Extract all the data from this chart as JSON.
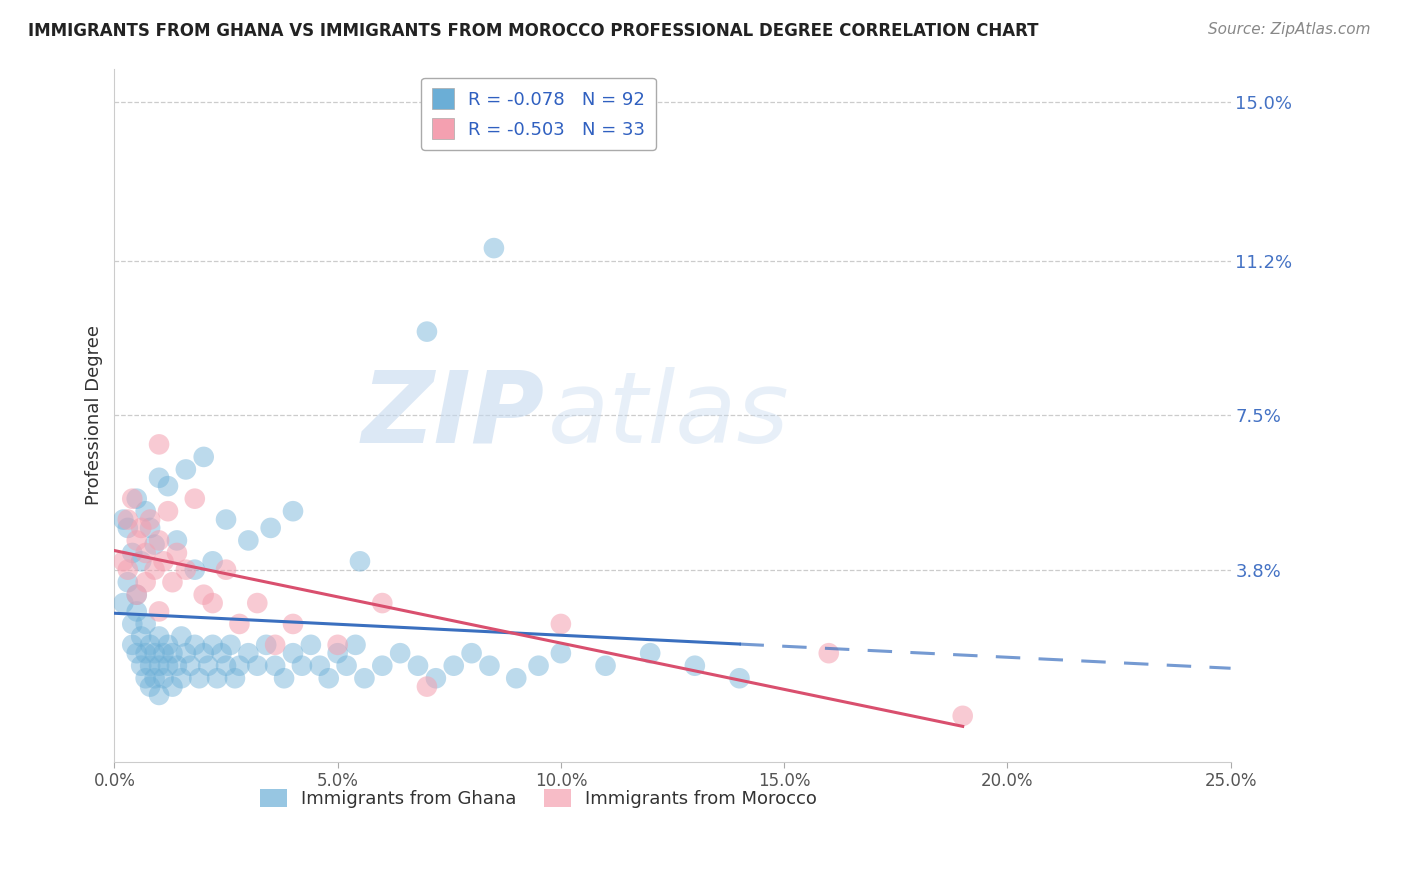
{
  "title": "IMMIGRANTS FROM GHANA VS IMMIGRANTS FROM MOROCCO PROFESSIONAL DEGREE CORRELATION CHART",
  "source": "Source: ZipAtlas.com",
  "ylabel": "Professional Degree",
  "xlim": [
    0.0,
    0.25
  ],
  "ylim": [
    -0.008,
    0.158
  ],
  "yticks": [
    0.038,
    0.075,
    0.112,
    0.15
  ],
  "ytick_labels": [
    "3.8%",
    "7.5%",
    "11.2%",
    "15.0%"
  ],
  "xticks": [
    0.0,
    0.05,
    0.1,
    0.15,
    0.2,
    0.25
  ],
  "xtick_labels": [
    "0.0%",
    "5.0%",
    "10.0%",
    "15.0%",
    "20.0%",
    "25.0%"
  ],
  "ghana_R": -0.078,
  "ghana_N": 92,
  "morocco_R": -0.503,
  "morocco_N": 33,
  "ghana_color": "#6baed6",
  "morocco_color": "#f4a0b0",
  "ghana_line_color": "#3a6fbf",
  "morocco_line_color": "#d94f6e",
  "watermark_zip": "ZIP",
  "watermark_atlas": "atlas",
  "ghana_x": [
    0.002,
    0.003,
    0.004,
    0.004,
    0.005,
    0.005,
    0.005,
    0.006,
    0.006,
    0.007,
    0.007,
    0.007,
    0.008,
    0.008,
    0.008,
    0.009,
    0.009,
    0.01,
    0.01,
    0.01,
    0.011,
    0.011,
    0.012,
    0.012,
    0.013,
    0.013,
    0.014,
    0.015,
    0.015,
    0.016,
    0.017,
    0.018,
    0.019,
    0.02,
    0.021,
    0.022,
    0.023,
    0.024,
    0.025,
    0.026,
    0.027,
    0.028,
    0.03,
    0.032,
    0.034,
    0.036,
    0.038,
    0.04,
    0.042,
    0.044,
    0.046,
    0.048,
    0.05,
    0.052,
    0.054,
    0.056,
    0.06,
    0.064,
    0.068,
    0.072,
    0.076,
    0.08,
    0.084,
    0.09,
    0.095,
    0.1,
    0.11,
    0.12,
    0.13,
    0.14,
    0.002,
    0.003,
    0.004,
    0.005,
    0.006,
    0.007,
    0.008,
    0.009,
    0.01,
    0.012,
    0.014,
    0.016,
    0.018,
    0.02,
    0.022,
    0.025,
    0.03,
    0.035,
    0.04,
    0.055,
    0.07,
    0.085
  ],
  "ghana_y": [
    0.03,
    0.035,
    0.025,
    0.02,
    0.028,
    0.032,
    0.018,
    0.022,
    0.015,
    0.025,
    0.018,
    0.012,
    0.02,
    0.015,
    0.01,
    0.018,
    0.012,
    0.022,
    0.015,
    0.008,
    0.018,
    0.012,
    0.02,
    0.015,
    0.018,
    0.01,
    0.015,
    0.022,
    0.012,
    0.018,
    0.015,
    0.02,
    0.012,
    0.018,
    0.015,
    0.02,
    0.012,
    0.018,
    0.015,
    0.02,
    0.012,
    0.015,
    0.018,
    0.015,
    0.02,
    0.015,
    0.012,
    0.018,
    0.015,
    0.02,
    0.015,
    0.012,
    0.018,
    0.015,
    0.02,
    0.012,
    0.015,
    0.018,
    0.015,
    0.012,
    0.015,
    0.018,
    0.015,
    0.012,
    0.015,
    0.018,
    0.015,
    0.018,
    0.015,
    0.012,
    0.05,
    0.048,
    0.042,
    0.055,
    0.04,
    0.052,
    0.048,
    0.044,
    0.06,
    0.058,
    0.045,
    0.062,
    0.038,
    0.065,
    0.04,
    0.05,
    0.045,
    0.048,
    0.052,
    0.04,
    0.095,
    0.115
  ],
  "morocco_x": [
    0.002,
    0.003,
    0.003,
    0.004,
    0.005,
    0.005,
    0.006,
    0.007,
    0.007,
    0.008,
    0.009,
    0.01,
    0.01,
    0.011,
    0.012,
    0.013,
    0.014,
    0.016,
    0.018,
    0.02,
    0.022,
    0.025,
    0.028,
    0.032,
    0.036,
    0.04,
    0.05,
    0.06,
    0.07,
    0.1,
    0.16,
    0.19,
    0.01
  ],
  "morocco_y": [
    0.04,
    0.05,
    0.038,
    0.055,
    0.045,
    0.032,
    0.048,
    0.042,
    0.035,
    0.05,
    0.038,
    0.045,
    0.028,
    0.04,
    0.052,
    0.035,
    0.042,
    0.038,
    0.055,
    0.032,
    0.03,
    0.038,
    0.025,
    0.03,
    0.02,
    0.025,
    0.02,
    0.03,
    0.01,
    0.025,
    0.018,
    0.003,
    0.068
  ]
}
